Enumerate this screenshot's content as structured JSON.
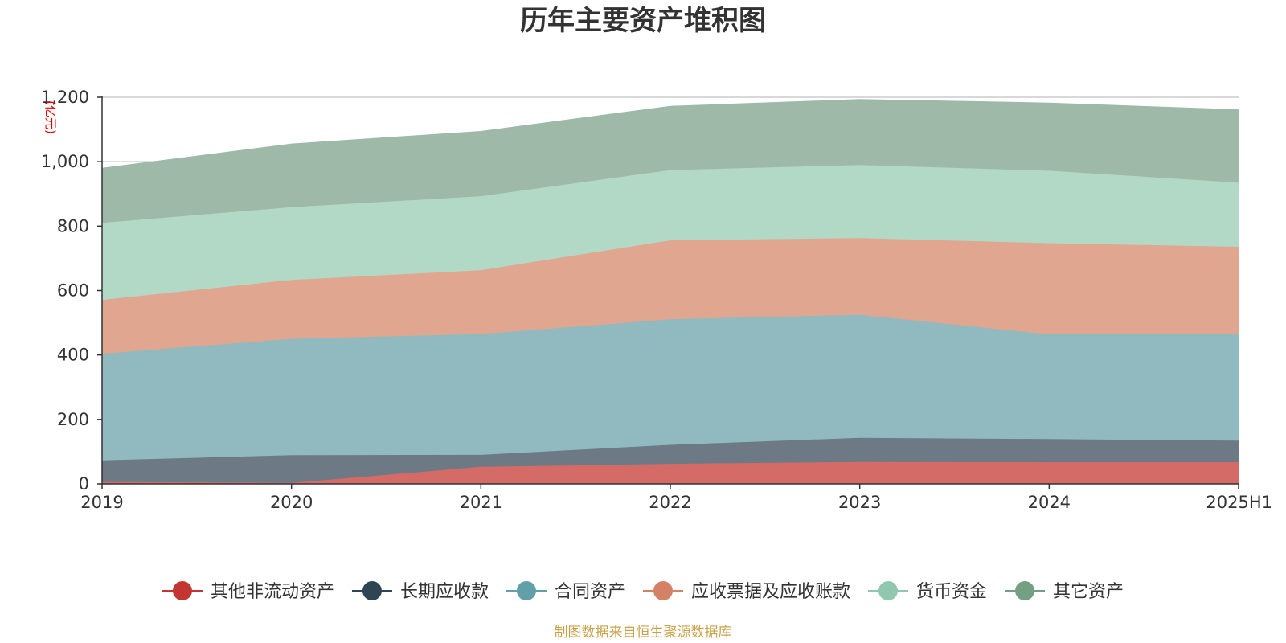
{
  "chart_data": {
    "type": "area",
    "stacked": true,
    "title": "历年主要资产堆积图",
    "unit_label": "(亿元)",
    "categories": [
      "2019",
      "2020",
      "2021",
      "2022",
      "2023",
      "2024",
      "2025H1"
    ],
    "y_ticks": [
      "0",
      "200",
      "400",
      "600",
      "800",
      "1,000",
      "1,200"
    ],
    "ylim": [
      0,
      1200
    ],
    "grid": true,
    "legend_position": "bottom",
    "series": [
      {
        "name": "其他非流动资产",
        "color": "#c23531",
        "area_color": "#d46b66",
        "values": [
          6,
          3,
          53,
          62,
          68,
          67,
          67
        ]
      },
      {
        "name": "长期应收款",
        "color": "#2f4554",
        "area_color": "#6d7a85",
        "values": [
          67,
          86,
          37,
          59,
          75,
          72,
          67
        ]
      },
      {
        "name": "合同资产",
        "color": "#61a0a8",
        "area_color": "#90bac0",
        "values": [
          331,
          361,
          375,
          390,
          382,
          325,
          330
        ]
      },
      {
        "name": "应收票据及应收账款",
        "color": "#d48265",
        "area_color": "#e0a690",
        "values": [
          167,
          183,
          198,
          245,
          238,
          283,
          272
        ]
      },
      {
        "name": "货币资金",
        "color": "#91c7ae",
        "area_color": "#b2d8c6",
        "values": [
          239,
          226,
          230,
          218,
          227,
          225,
          199
        ]
      },
      {
        "name": "其它资产",
        "color": "#749f83",
        "area_color": "#9eb9a7",
        "values": [
          170,
          196,
          201,
          198,
          203,
          210,
          226
        ]
      }
    ]
  },
  "footer": {
    "source": "制图数据来自恒生聚源数据库"
  }
}
